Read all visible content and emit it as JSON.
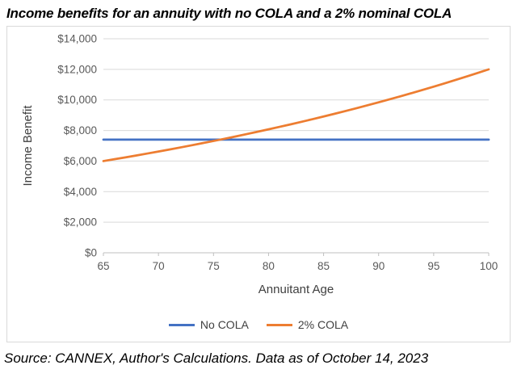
{
  "title": "Income benefits for an annuity with no COLA and a 2% nominal COLA",
  "source": "Source: CANNEX, Author's Calculations. Data as of October 14, 2023",
  "colors": {
    "gridline": "#d9d9d9",
    "axis_line": "#bfbfbf",
    "tick_text": "#595959",
    "axis_title_text": "#404040",
    "no_cola_blue": "#4472C4",
    "cola_orange": "#ED7D31"
  },
  "chart_data": {
    "type": "line",
    "title": "Income benefits for an annuity with no COLA and a 2% nominal COLA",
    "xlabel": "Annuitant Age",
    "ylabel": "Income Benefit",
    "xlim": [
      65,
      100
    ],
    "ylim": [
      0,
      14000
    ],
    "grid": "horizontal",
    "legend_position": "bottom",
    "x_ticks": [
      65,
      70,
      75,
      80,
      85,
      90,
      95,
      100
    ],
    "x_tick_labels": [
      "65",
      "70",
      "75",
      "80",
      "85",
      "90",
      "95",
      "100"
    ],
    "y_ticks": [
      0,
      2000,
      4000,
      6000,
      8000,
      10000,
      12000,
      14000
    ],
    "y_tick_labels": [
      "$0",
      "$2,000",
      "$4,000",
      "$6,000",
      "$8,000",
      "$10,000",
      "$12,000",
      "$14,000"
    ],
    "x": [
      65,
      66,
      67,
      68,
      69,
      70,
      71,
      72,
      73,
      74,
      75,
      76,
      77,
      78,
      79,
      80,
      81,
      82,
      83,
      84,
      85,
      86,
      87,
      88,
      89,
      90,
      91,
      92,
      93,
      94,
      95,
      96,
      97,
      98,
      99,
      100
    ],
    "series": [
      {
        "name": "No COLA",
        "color": "#4472C4",
        "values": [
          7400,
          7400,
          7400,
          7400,
          7400,
          7400,
          7400,
          7400,
          7400,
          7400,
          7400,
          7400,
          7400,
          7400,
          7400,
          7400,
          7400,
          7400,
          7400,
          7400,
          7400,
          7400,
          7400,
          7400,
          7400,
          7400,
          7400,
          7400,
          7400,
          7400,
          7400,
          7400,
          7400,
          7400,
          7400,
          7400
        ]
      },
      {
        "name": "2% COLA",
        "color": "#ED7D31",
        "values": [
          6000,
          6120,
          6242,
          6367,
          6495,
          6625,
          6757,
          6892,
          7030,
          7171,
          7314,
          7460,
          7609,
          7762,
          7917,
          8075,
          8237,
          8401,
          8569,
          8741,
          8916,
          9094,
          9276,
          9461,
          9651,
          9844,
          10040,
          10241,
          10446,
          10655,
          10868,
          11086,
          11307,
          11533,
          11764,
          11999
        ]
      }
    ]
  }
}
